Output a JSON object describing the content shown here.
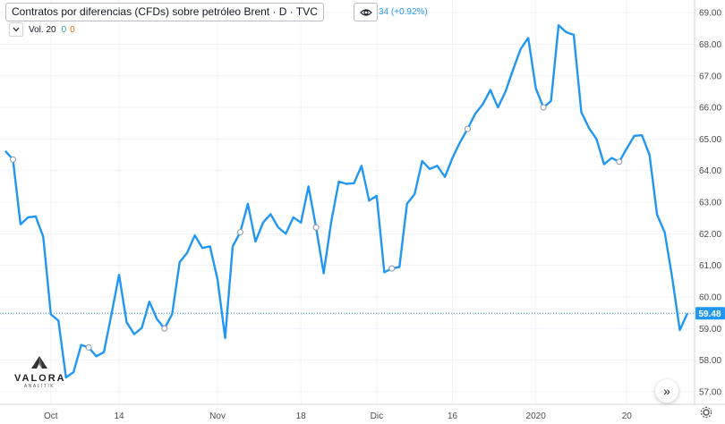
{
  "legend": {
    "title": "Contratos por diferencias (CFDs) sobre petróleo Brent · D · TVC",
    "change_text": "34 (+0.92%)"
  },
  "volume": {
    "label": "Vol. 20",
    "value1": "0",
    "value2": "0"
  },
  "logo": {
    "name": "VALORA",
    "sub": "ANALITIK"
  },
  "colors": {
    "line": "#2196f3",
    "marker_fill": "#ffffff",
    "axis_text": "#4a4a4a",
    "grid": "#f0f3fa",
    "price_label_bg": "#2196f3"
  },
  "chart_data": {
    "type": "line",
    "title": "Contratos por diferencias (CFDs) sobre petróleo Brent · D · TVC",
    "ylim": [
      56.6,
      69.4
    ],
    "y_ticks": [
      "69.00",
      "68.00",
      "67.00",
      "66.00",
      "65.00",
      "64.00",
      "63.00",
      "62.00",
      "61.00",
      "60.00",
      "59.00",
      "58.00",
      "57.00"
    ],
    "x_ticks": [
      {
        "label": "Oct",
        "index": 6
      },
      {
        "label": "14",
        "index": 15
      },
      {
        "label": "Nov",
        "index": 28
      },
      {
        "label": "18",
        "index": 39
      },
      {
        "label": "Dic",
        "index": 49
      },
      {
        "label": "16",
        "index": 59
      },
      {
        "label": "2020",
        "index": 70
      },
      {
        "label": "20",
        "index": 82
      }
    ],
    "last_price": 59.48,
    "last_price_label": "59.48",
    "series": [
      {
        "values": [
          64.62,
          64.35,
          62.3,
          62.52,
          62.55,
          61.9,
          59.45,
          59.25,
          57.45,
          57.62,
          58.48,
          58.4,
          58.12,
          58.25,
          59.45,
          60.7,
          59.2,
          58.82,
          59.02,
          59.85,
          59.3,
          59.0,
          59.45,
          61.1,
          61.4,
          61.95,
          61.55,
          61.6,
          60.55,
          58.7,
          61.6,
          62.05,
          62.95,
          61.75,
          62.35,
          62.62,
          62.2,
          62.0,
          62.52,
          62.35,
          63.5,
          62.2,
          60.75,
          62.38,
          63.65,
          63.58,
          63.6,
          64.15,
          63.05,
          63.2,
          60.78,
          60.9,
          60.95,
          62.95,
          63.25,
          64.3,
          64.05,
          64.15,
          63.8,
          64.4,
          64.9,
          65.32,
          65.8,
          66.1,
          66.55,
          66.0,
          66.5,
          67.2,
          67.85,
          68.2,
          66.6,
          66.0,
          66.2,
          68.6,
          68.38,
          68.3,
          65.85,
          65.35,
          65.0,
          64.2,
          64.4,
          64.28,
          64.7,
          65.1,
          65.12,
          64.5,
          62.6,
          62.05,
          60.6,
          58.95,
          59.48
        ],
        "markers": [
          1,
          11,
          21,
          31,
          41,
          51,
          61,
          71,
          81
        ]
      }
    ],
    "grid": true,
    "price_axis_position": "right"
  }
}
